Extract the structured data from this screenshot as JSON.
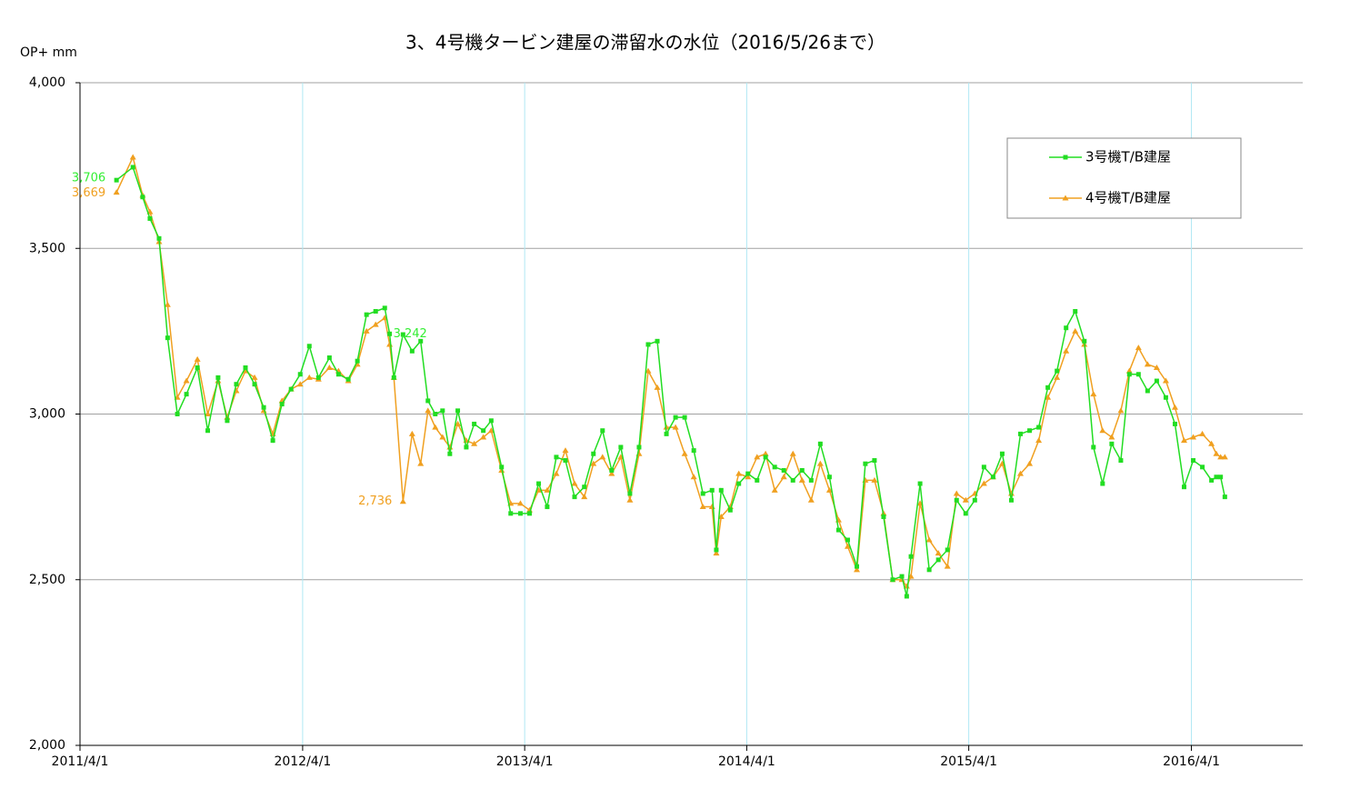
{
  "chart_data": {
    "type": "line",
    "title": "3、4号機タービン建屋の滞留水の水位（2016/5/26まで）",
    "y_label": "OP+ mm",
    "x": [
      "2011/5/31",
      "2011/6/27",
      "2011/7/13",
      "2011/7/25",
      "2011/8/9",
      "2011/8/23",
      "2011/9/8",
      "2011/9/23",
      "2011/10/11",
      "2011/10/28",
      "2011/11/14",
      "2011/11/29",
      "2011/12/14",
      "2011/12/29",
      "2012/1/13",
      "2012/1/28",
      "2012/2/12",
      "2012/2/27",
      "2012/3/13",
      "2012/3/28",
      "2012/4/12",
      "2012/4/27",
      "2012/5/15",
      "2012/5/30",
      "2012/6/15",
      "2012/6/30",
      "2012/7/15",
      "2012/7/30",
      "2012/8/14",
      "2012/8/22",
      "2012/8/29",
      "2012/9/13",
      "2012/9/28",
      "2012/10/12",
      "2012/10/24",
      "2012/11/5",
      "2012/11/17",
      "2012/11/29",
      "2012/12/12",
      "2012/12/26",
      "2013/1/8",
      "2013/1/23",
      "2013/2/5",
      "2013/2/22",
      "2013/3/9",
      "2013/3/25",
      "2013/4/9",
      "2013/4/24",
      "2013/5/8",
      "2013/5/23",
      "2013/6/7",
      "2013/6/22",
      "2013/7/8",
      "2013/7/23",
      "2013/8/7",
      "2013/8/22",
      "2013/9/6",
      "2013/9/21",
      "2013/10/6",
      "2013/10/21",
      "2013/11/5",
      "2013/11/20",
      "2013/12/5",
      "2013/12/20",
      "2014/1/4",
      "2014/1/19",
      "2014/2/3",
      "2014/2/10",
      "2014/2/18",
      "2014/3/5",
      "2014/3/19",
      "2014/4/3",
      "2014/4/18",
      "2014/5/2",
      "2014/5/17",
      "2014/6/1",
      "2014/6/16",
      "2014/7/1",
      "2014/7/16",
      "2014/7/31",
      "2014/8/15",
      "2014/8/30",
      "2014/9/14",
      "2014/9/29",
      "2014/10/13",
      "2014/10/28",
      "2014/11/12",
      "2014/11/27",
      "2014/12/12",
      "2014/12/20",
      "2014/12/27",
      "2015/1/11",
      "2015/1/26",
      "2015/2/10",
      "2015/2/25",
      "2015/3/12",
      "2015/3/27",
      "2015/4/11",
      "2015/4/26",
      "2015/5/11",
      "2015/5/26",
      "2015/6/10",
      "2015/6/25",
      "2015/7/10",
      "2015/7/25",
      "2015/8/9",
      "2015/8/24",
      "2015/9/8",
      "2015/9/23",
      "2015/10/8",
      "2015/10/23",
      "2015/11/7",
      "2015/11/22",
      "2015/12/7",
      "2015/12/21",
      "2016/1/5",
      "2016/1/20",
      "2016/2/4",
      "2016/2/19",
      "2016/3/5",
      "2016/3/20",
      "2016/4/4",
      "2016/4/19",
      "2016/5/4",
      "2016/5/12",
      "2016/5/19",
      "2016/5/26"
    ],
    "series": [
      {
        "name": "3号機T/B建屋",
        "color": "#22dd22",
        "marker": "square",
        "label_color": "#33ee33",
        "values": [
          3706,
          3745,
          3655,
          3590,
          3530,
          3230,
          3000,
          3060,
          3140,
          2950,
          3110,
          2980,
          3090,
          3140,
          3090,
          3020,
          2920,
          3030,
          3075,
          3120,
          3205,
          3110,
          3170,
          3120,
          3105,
          3160,
          3300,
          3310,
          3320,
          3242,
          3110,
          3240,
          3190,
          3220,
          3040,
          3000,
          3010,
          2880,
          3010,
          2900,
          2970,
          2950,
          2980,
          2840,
          2700,
          2700,
          2700,
          2790,
          2720,
          2870,
          2860,
          2750,
          2780,
          2880,
          2950,
          2830,
          2900,
          2760,
          2900,
          3210,
          3220,
          2940,
          2990,
          2990,
          2890,
          2760,
          2770,
          2590,
          2770,
          2710,
          2790,
          2820,
          2800,
          2870,
          2840,
          2830,
          2800,
          2830,
          2800,
          2910,
          2810,
          2650,
          2620,
          2540,
          2850,
          2860,
          2690,
          2500,
          2510,
          2450,
          2570,
          2790,
          2530,
          2560,
          2590,
          2740,
          2700,
          2740,
          2840,
          2810,
          2880,
          2740,
          2940,
          2950,
          2960,
          3080,
          3130,
          3260,
          3310,
          3220,
          2900,
          2790,
          2910,
          2860,
          3120,
          3120,
          3070,
          3100,
          3050,
          2970,
          2780,
          2860,
          2840,
          2800,
          2810,
          2810,
          2750
        ],
        "value_labels": [
          "3,706",
          null,
          null,
          null,
          null,
          null,
          null,
          null,
          null,
          null,
          null,
          null,
          null,
          null,
          null,
          null,
          null,
          null,
          null,
          null,
          null,
          null,
          null,
          null,
          null,
          null,
          null,
          null,
          null,
          "3,242",
          null,
          null,
          null,
          null,
          null,
          null,
          null,
          null,
          null,
          null,
          null,
          null,
          null,
          null,
          null,
          null,
          null,
          null,
          null,
          null,
          null,
          null,
          null,
          null,
          null,
          null,
          null,
          null,
          null,
          null,
          null,
          null,
          null,
          null,
          null,
          null,
          null,
          null,
          null,
          null,
          null,
          null,
          null,
          null,
          null,
          null,
          null,
          null,
          null,
          null,
          null,
          null,
          null,
          null,
          null,
          null,
          null,
          null,
          null,
          null,
          null,
          null,
          null,
          null,
          null,
          null,
          null,
          null,
          null,
          null,
          null,
          null,
          null,
          null,
          null,
          null,
          null,
          null,
          null,
          null,
          null,
          null,
          null,
          null,
          null,
          null,
          null,
          null,
          null,
          null,
          null,
          null,
          null,
          null,
          null,
          null,
          null
        ]
      },
      {
        "name": "4号機T/B建屋",
        "color": "#f0a020",
        "marker": "triangle",
        "label_color": "#f0a020",
        "values": [
          3669,
          3775,
          3660,
          3610,
          3520,
          3330,
          3050,
          3100,
          3165,
          3000,
          3100,
          2990,
          3070,
          3130,
          3110,
          3010,
          2940,
          3040,
          3075,
          3090,
          3110,
          3105,
          3140,
          3130,
          3100,
          3150,
          3250,
          3270,
          3290,
          3210,
          3110,
          2736,
          2940,
          2850,
          3010,
          2960,
          2930,
          2900,
          2970,
          2920,
          2910,
          2930,
          2950,
          2830,
          2730,
          2730,
          2710,
          2770,
          2770,
          2820,
          2890,
          2790,
          2750,
          2850,
          2870,
          2820,
          2870,
          2740,
          2880,
          3130,
          3080,
          2960,
          2960,
          2880,
          2810,
          2720,
          2720,
          2580,
          2690,
          2720,
          2820,
          2810,
          2870,
          2880,
          2770,
          2810,
          2880,
          2800,
          2740,
          2850,
          2770,
          2680,
          2600,
          2530,
          2800,
          2800,
          2700,
          2500,
          2500,
          2480,
          2510,
          2730,
          2620,
          2580,
          2540,
          2760,
          2740,
          2760,
          2790,
          2810,
          2850,
          2760,
          2820,
          2850,
          2920,
          3050,
          3110,
          3190,
          3250,
          3210,
          3060,
          2950,
          2930,
          3010,
          3130,
          3200,
          3150,
          3140,
          3100,
          3020,
          2920,
          2930,
          2940,
          2910,
          2880,
          2870,
          2870
        ],
        "value_labels": [
          "3,669",
          null,
          null,
          null,
          null,
          null,
          null,
          null,
          null,
          null,
          null,
          null,
          null,
          null,
          null,
          null,
          null,
          null,
          null,
          null,
          null,
          null,
          null,
          null,
          null,
          null,
          null,
          null,
          null,
          null,
          null,
          "2,736",
          null,
          null,
          null,
          null,
          null,
          null,
          null,
          null,
          null,
          null,
          null,
          null,
          null,
          null,
          null,
          null,
          null,
          null,
          null,
          null,
          null,
          null,
          null,
          null,
          null,
          null,
          null,
          null,
          null,
          null,
          null,
          null,
          null,
          null,
          null,
          null,
          null,
          null,
          null,
          null,
          null,
          null,
          null,
          null,
          null,
          null,
          null,
          null,
          null,
          null,
          null,
          null,
          null,
          null,
          null,
          null,
          null,
          null,
          null,
          null,
          null,
          null,
          null,
          null,
          null,
          null,
          null,
          null,
          null,
          null,
          null,
          null,
          null,
          null,
          null,
          null,
          null,
          null,
          null,
          null,
          null,
          null,
          null,
          null,
          null,
          null,
          null,
          null,
          null,
          null,
          null,
          null,
          null,
          null,
          null
        ]
      }
    ],
    "xlim": [
      "2011/4/1",
      "2016/10/1"
    ],
    "xticks": [
      "2011/4/1",
      "2012/4/1",
      "2013/4/1",
      "2014/4/1",
      "2015/4/1",
      "2016/4/1"
    ],
    "ylim": [
      2000,
      4000
    ],
    "yticks": [
      {
        "value": 2000,
        "label": "2,000"
      },
      {
        "value": 2500,
        "label": "2,500"
      },
      {
        "value": 3000,
        "label": "3,000"
      },
      {
        "value": 3500,
        "label": "3,500"
      },
      {
        "value": 4000,
        "label": "4,000"
      }
    ],
    "grid": true,
    "xgrid_color": "#b0e8f4",
    "ygrid_color": "#a0a0a0",
    "legend": "upper right"
  }
}
